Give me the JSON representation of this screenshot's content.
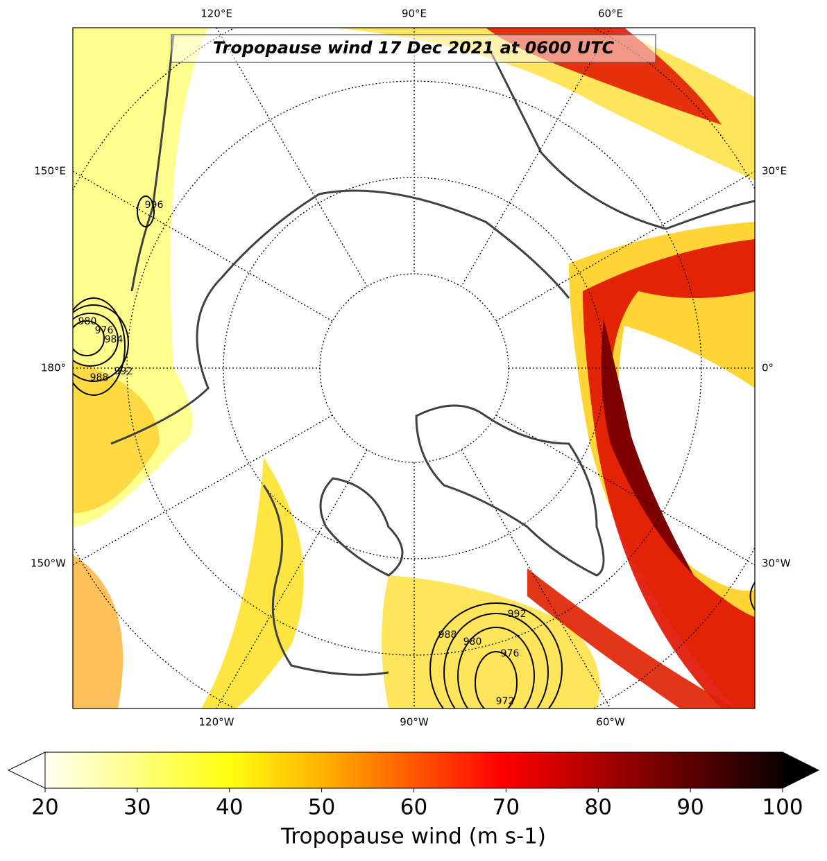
{
  "map": {
    "title": "Tropopause wind 17 Dec 2021 at 0600 UTC",
    "meridian_labels": {
      "top": [
        "120°E",
        "90°E",
        "60°E"
      ],
      "left": [
        "150°E",
        "180°",
        "150°W"
      ],
      "right": [
        "30°E",
        "0°",
        "30°W"
      ],
      "bottom": [
        "120°W",
        "90°W",
        "60°W"
      ]
    },
    "contour_labels": [
      "996",
      "980",
      "976",
      "984",
      "988",
      "992",
      "988",
      "980",
      "976",
      "972",
      "992"
    ],
    "colorbar": {
      "lim": [
        20,
        100
      ],
      "ticks": [
        20,
        30,
        40,
        50,
        60,
        70,
        80,
        90,
        100
      ],
      "label": "Tropopause wind (m s-1)"
    }
  }
}
